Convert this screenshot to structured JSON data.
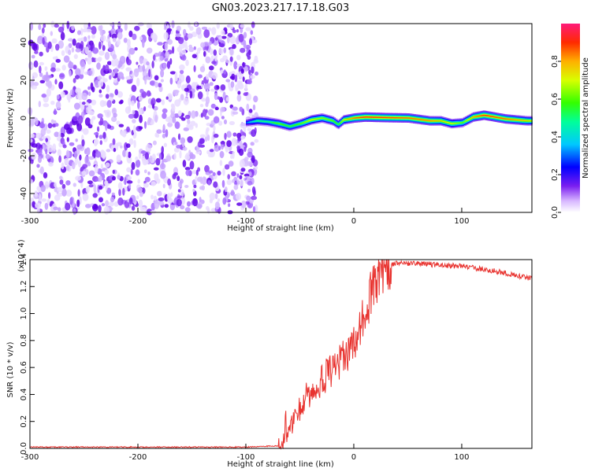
{
  "title": "GN03.2023.217.17.18.G03",
  "chart_data": [
    {
      "type": "heatmap",
      "xlabel": "Height of straight line (km)",
      "ylabel": "Frequency (Hz)",
      "xlim": [
        -300,
        165
      ],
      "ylim": [
        -50,
        50
      ],
      "xticks": [
        "-300",
        "-200",
        "-100",
        "0",
        "100"
      ],
      "yticks": [
        "-40",
        "-20",
        "0",
        "20",
        "40"
      ],
      "colorbar": {
        "label": "Normalized spectral amplitude",
        "range": [
          0,
          1
        ],
        "ticks": [
          "0.0",
          "0.2",
          "0.4",
          "0.6",
          "0.8"
        ]
      },
      "noise_region_x": [
        -300,
        -90
      ],
      "ridge": {
        "x": [
          -100,
          -90,
          -80,
          -70,
          -60,
          -50,
          -40,
          -30,
          -20,
          -15,
          -10,
          0,
          10,
          30,
          50,
          70,
          80,
          90,
          100,
          110,
          120,
          140,
          160,
          165
        ],
        "freq": [
          -2.5,
          -1.5,
          -2,
          -3,
          -4.5,
          -3,
          -1,
          0,
          -1.5,
          -3.5,
          -1,
          0,
          0.5,
          0.2,
          0,
          -1.5,
          -1.5,
          -3,
          -2.5,
          0.5,
          1.5,
          -0.5,
          -1.5,
          -1.5
        ],
        "amplitude": [
          0.3,
          0.5,
          0.5,
          0.6,
          0.55,
          0.6,
          0.7,
          0.65,
          0.6,
          0.55,
          0.7,
          0.85,
          0.9,
          0.88,
          0.85,
          0.82,
          0.75,
          0.7,
          0.6,
          0.8,
          0.9,
          0.85,
          0.75,
          0.7
        ]
      }
    },
    {
      "type": "line",
      "xlabel": "Height of straight line (km)",
      "ylabel": "SNR (10 * v/v)",
      "y_multiplier": "(x10^4)",
      "xlim": [
        -300,
        165
      ],
      "ylim": [
        0,
        1.4
      ],
      "xticks": [
        "-300",
        "-200",
        "-100",
        "0",
        "100"
      ],
      "yticks": [
        "0.0",
        "0.2",
        "0.4",
        "0.6",
        "0.8",
        "1.0",
        "1.2",
        "1.4"
      ],
      "series": [
        {
          "color": "#e8332f",
          "x": [
            -300,
            -200,
            -100,
            -70,
            -65,
            -60,
            -55,
            -50,
            -45,
            -40,
            -35,
            -30,
            -25,
            -20,
            -15,
            -10,
            -5,
            0,
            5,
            10,
            15,
            20,
            25,
            30,
            40,
            60,
            80,
            100,
            120,
            140,
            165
          ],
          "y": [
            0.01,
            0.01,
            0.01,
            0.02,
            0.06,
            0.12,
            0.22,
            0.3,
            0.38,
            0.42,
            0.45,
            0.5,
            0.55,
            0.58,
            0.62,
            0.68,
            0.72,
            0.78,
            0.88,
            1.0,
            1.12,
            1.22,
            1.3,
            1.35,
            1.37,
            1.37,
            1.36,
            1.35,
            1.33,
            1.3,
            1.26
          ]
        }
      ]
    }
  ]
}
